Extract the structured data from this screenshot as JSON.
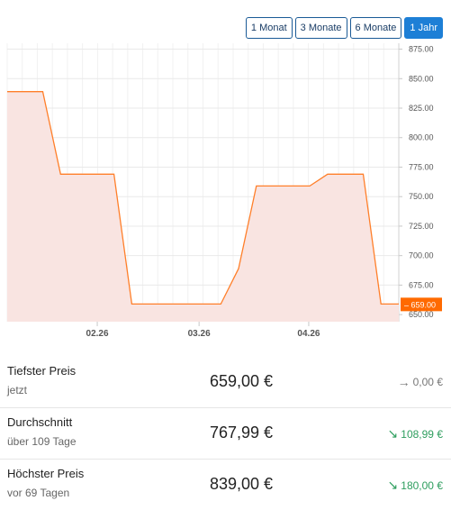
{
  "ranges": [
    {
      "label": "1 Monat",
      "active": false
    },
    {
      "label": "3 Monate",
      "active": false
    },
    {
      "label": "6 Monate",
      "active": false
    },
    {
      "label": "1 Jahr",
      "active": true
    }
  ],
  "chart_data": {
    "type": "area",
    "x_ticks": [
      "02.26",
      "03.26",
      "04.26"
    ],
    "y_ticks": [
      "875.00",
      "850.00",
      "825.00",
      "800.00",
      "775.00",
      "750.00",
      "725.00",
      "700.00",
      "675.00",
      "650.00"
    ],
    "ylim": [
      644,
      880
    ],
    "series": [
      {
        "values": [
          839,
          839,
          839,
          769,
          769,
          769,
          769,
          659,
          659,
          659,
          659,
          659,
          659,
          689,
          759,
          759,
          759,
          759,
          769,
          769,
          769,
          659,
          659
        ]
      }
    ],
    "current_label": "659.00",
    "grid": true,
    "colors": {
      "line": "#ff7f2a",
      "fill": "#f9e4e1",
      "label_bg": "#ff6a00"
    }
  },
  "stats": [
    {
      "label": "Tiefster Preis",
      "sub": "jetzt",
      "value": "659,00 €",
      "delta": "0,00 €",
      "delta_icon": "→",
      "color": "#777777"
    },
    {
      "label": "Durchschnitt",
      "sub": "über 109 Tage",
      "value": "767,99 €",
      "delta": "108,99 €",
      "delta_icon": "↘",
      "color": "#2e9e5e"
    },
    {
      "label": "Höchster Preis",
      "sub": "vor 69 Tagen",
      "value": "839,00 €",
      "delta": "180,00 €",
      "delta_icon": "↘",
      "color": "#2e9e5e"
    }
  ]
}
